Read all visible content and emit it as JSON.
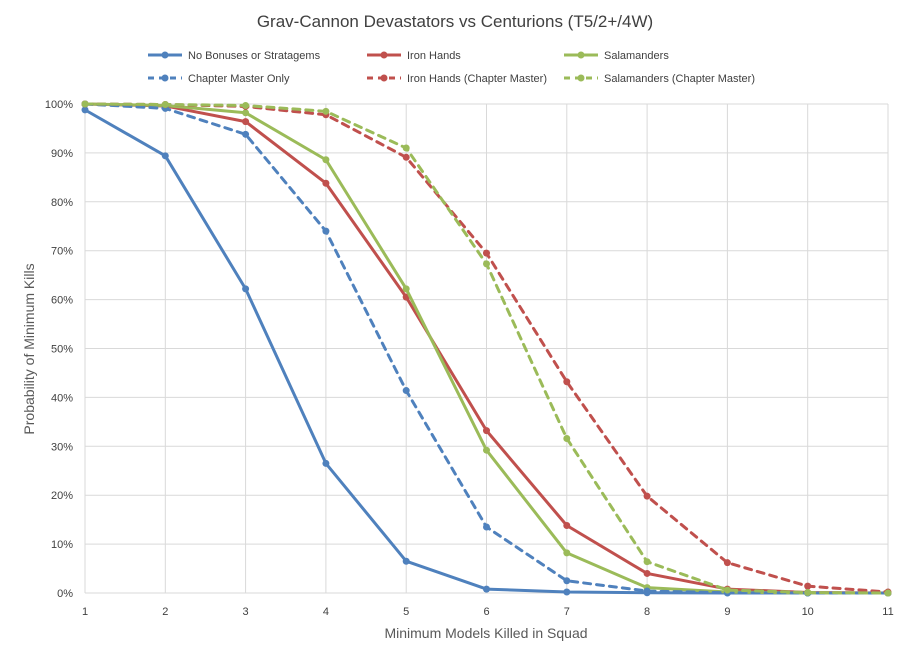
{
  "chart_data": {
    "type": "line",
    "title": "Grav-Cannon Devastators vs Centurions  (T5/2+/4W)",
    "xlabel": "Minimum Models Killed in Squad",
    "ylabel": "Probability of Minimum Kills",
    "x": [
      1,
      2,
      3,
      4,
      5,
      6,
      7,
      8,
      9,
      10,
      11
    ],
    "xlim": [
      1,
      11
    ],
    "ylim": [
      0,
      100
    ],
    "y_ticks": [
      0,
      10,
      20,
      30,
      40,
      50,
      60,
      70,
      80,
      90,
      100
    ],
    "y_tick_labels": [
      "0%",
      "10%",
      "20%",
      "30%",
      "40%",
      "50%",
      "60%",
      "70%",
      "80%",
      "90%",
      "100%"
    ],
    "grid": true,
    "legend_position": "top",
    "series": [
      {
        "name": "No Bonuses or Stratagems",
        "color": "#4f81bd",
        "dashed": false,
        "values": [
          98.8,
          89.4,
          62.2,
          26.5,
          6.5,
          0.8,
          0.2,
          0.05,
          0.0,
          0.0,
          0.0
        ]
      },
      {
        "name": "Iron Hands",
        "color": "#c0504d",
        "dashed": false,
        "values": [
          100,
          99.6,
          96.4,
          83.8,
          60.5,
          33.2,
          13.8,
          4.0,
          0.8,
          0.1,
          0.0
        ]
      },
      {
        "name": "Salamanders",
        "color": "#9bbb59",
        "dashed": false,
        "values": [
          100,
          99.7,
          98.2,
          88.6,
          62.2,
          29.2,
          8.2,
          1.1,
          0.2,
          0.0,
          0.0
        ]
      },
      {
        "name": "Chapter Master Only",
        "color": "#4f81bd",
        "dashed": true,
        "values": [
          100,
          99.1,
          93.8,
          74.0,
          41.4,
          13.5,
          2.5,
          0.4,
          0.05,
          0.0,
          0.0
        ]
      },
      {
        "name": "Iron Hands (Chapter Master)",
        "color": "#c0504d",
        "dashed": true,
        "values": [
          100,
          99.9,
          99.5,
          97.8,
          89.1,
          69.5,
          43.2,
          19.8,
          6.2,
          1.4,
          0.2
        ]
      },
      {
        "name": "Salamanders (Chapter Master)",
        "color": "#9bbb59",
        "dashed": true,
        "values": [
          100,
          99.9,
          99.7,
          98.5,
          91.0,
          67.3,
          31.6,
          6.4,
          0.6,
          0.1,
          0.0
        ]
      }
    ]
  }
}
